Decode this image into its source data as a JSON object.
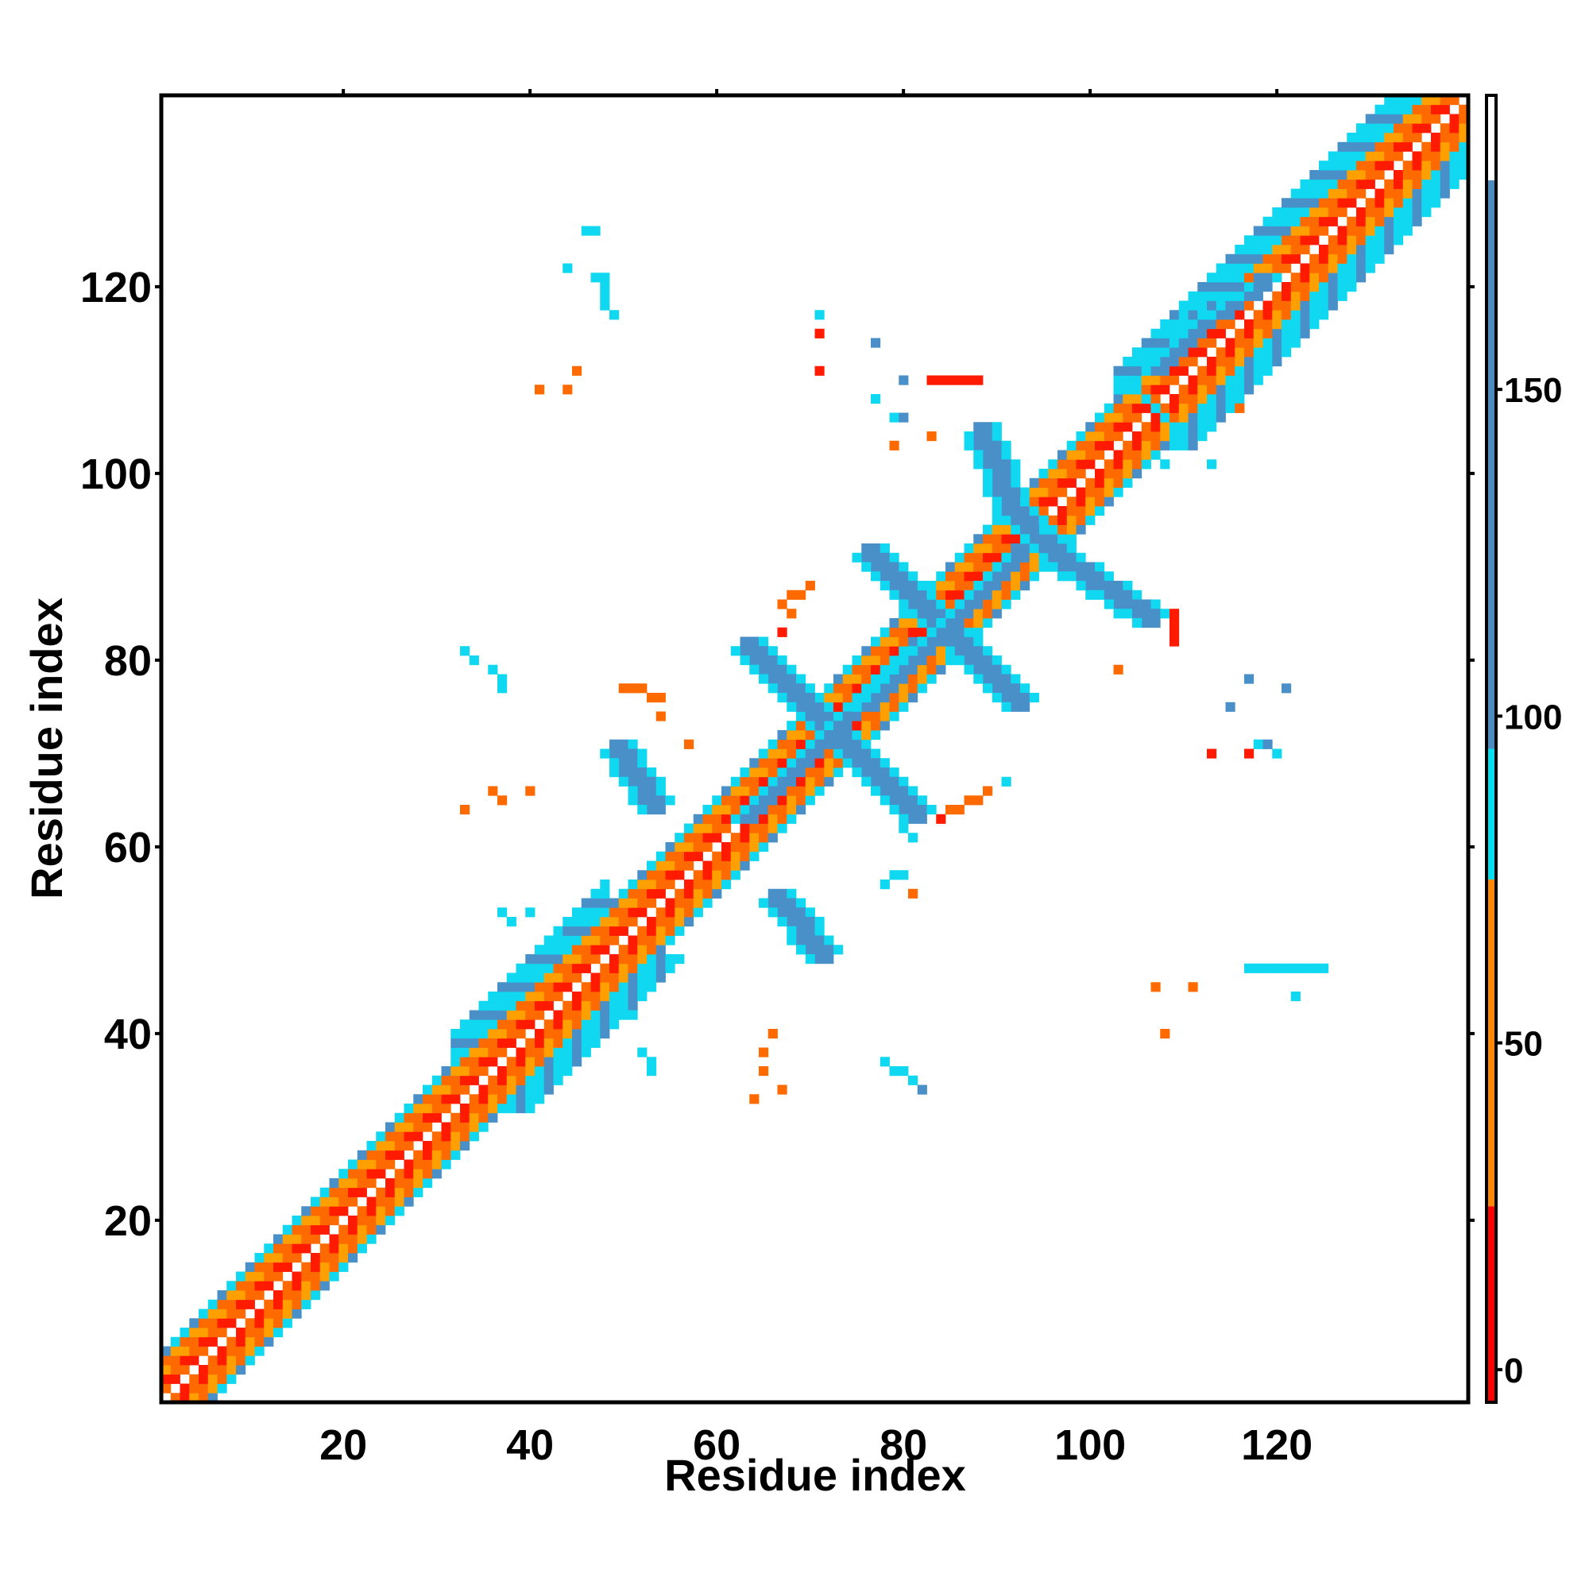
{
  "chart_data": {
    "type": "heatmap",
    "title": "",
    "xlabel": "Residue index",
    "ylabel": "Residue index",
    "xlim": [
      1,
      140
    ],
    "ylim": [
      1,
      140
    ],
    "x_ticks": [
      20,
      40,
      60,
      80,
      100,
      120
    ],
    "y_ticks": [
      20,
      40,
      60,
      80,
      100,
      120
    ],
    "x_tick_labels": [
      "20",
      "40",
      "60",
      "80",
      "100",
      "120"
    ],
    "y_tick_labels": [
      "20",
      "40",
      "60",
      "80",
      "100",
      "120"
    ],
    "grid": false,
    "legend": "none",
    "colorbar": {
      "position": "right",
      "range": [
        -5,
        195
      ],
      "ticks": [
        0,
        50,
        100,
        150
      ],
      "tick_labels": [
        "0",
        "50",
        "100",
        "150"
      ],
      "bands": [
        {
          "from": -5,
          "to": 25,
          "color": "#ff0000"
        },
        {
          "from": 25,
          "to": 75,
          "color": "#ff8800"
        },
        {
          "from": 75,
          "to": 95,
          "color": "#00e0f0"
        },
        {
          "from": 95,
          "to": 182,
          "color": "#4a8cc0"
        },
        {
          "from": 182,
          "to": 195,
          "color": "#ffffff"
        }
      ]
    },
    "colors": {
      "red": "#ff1a00",
      "orange": "#ff6a00",
      "amber": "#ffa000",
      "cyan": "#10d8f0",
      "steel": "#4a90c8"
    },
    "diagonal_band": {
      "start": 1,
      "end": 140,
      "width": 5,
      "widen": [
        [
          32,
          48,
          8
        ],
        [
          103,
          136,
          8
        ]
      ]
    },
    "segments": [
      {
        "color": "steel",
        "width": 2,
        "points": [
          [
            63,
            81
          ],
          [
            72,
            72
          ],
          [
            81,
            63
          ]
        ]
      },
      {
        "color": "steel",
        "width": 2,
        "points": [
          [
            63,
            63
          ],
          [
            72,
            72
          ],
          [
            81,
            81
          ]
        ]
      },
      {
        "color": "steel",
        "width": 2,
        "points": [
          [
            76,
            91
          ],
          [
            84,
            83
          ],
          [
            92,
            75
          ]
        ]
      },
      {
        "color": "steel",
        "width": 2,
        "points": [
          [
            76,
            75
          ],
          [
            84,
            83
          ],
          [
            92,
            91
          ]
        ]
      },
      {
        "color": "steel",
        "width": 2,
        "points": [
          [
            49,
            70
          ],
          [
            53,
            64
          ]
        ]
      },
      {
        "color": "steel",
        "width": 2,
        "points": [
          [
            66,
            54
          ],
          [
            71,
            48
          ]
        ]
      },
      {
        "color": "steel",
        "width": 2,
        "points": [
          [
            88,
            104
          ],
          [
            91,
            96
          ],
          [
            97,
            90
          ],
          [
            106,
            84
          ]
        ]
      },
      {
        "color": "steel",
        "width": 2,
        "points": [
          [
            107,
            111
          ],
          [
            112,
            116
          ],
          [
            118,
            120
          ]
        ]
      },
      {
        "color": "cyan",
        "width": 1,
        "points": [
          [
            104,
            110
          ],
          [
            110,
            104
          ]
        ]
      },
      {
        "color": "cyan",
        "width": 1,
        "points": [
          [
            48,
            121
          ],
          [
            48,
            118
          ]
        ]
      },
      {
        "color": "cyan",
        "width": 1,
        "points": [
          [
            80,
            62
          ],
          [
            81,
            61
          ]
        ]
      },
      {
        "color": "cyan",
        "width": 1,
        "points": [
          [
            117,
            47
          ],
          [
            124,
            47
          ]
        ]
      },
      {
        "color": "cyan",
        "width": 1,
        "points": [
          [
            78,
            37
          ],
          [
            82,
            34
          ]
        ]
      },
      {
        "color": "orange",
        "width": 1,
        "points": [
          [
            84,
            63
          ],
          [
            89,
            66
          ]
        ]
      },
      {
        "color": "orange",
        "width": 1,
        "points": [
          [
            50,
            77
          ],
          [
            54,
            76
          ]
        ]
      },
      {
        "color": "orange",
        "width": 1,
        "points": [
          [
            67,
            86
          ],
          [
            70,
            88
          ]
        ]
      },
      {
        "color": "red",
        "width": 1,
        "points": [
          [
            109,
            85
          ],
          [
            109,
            82
          ]
        ]
      },
      {
        "color": "red",
        "width": 1,
        "points": [
          [
            83,
            110
          ],
          [
            88,
            110
          ]
        ]
      }
    ],
    "cells": [
      {
        "color": "cyan",
        "x": [
          33,
          34,
          36,
          37,
          37,
          46,
          47,
          44,
          47,
          48,
          49,
          50,
          51,
          52,
          53,
          53,
          37,
          38,
          40,
          43,
          71,
          77,
          79,
          91,
          95,
          113,
          108,
          118,
          120,
          125,
          122,
          78,
          79,
          80,
          110,
          109
        ],
        "y": [
          81,
          80,
          79,
          78,
          77,
          126,
          126,
          122,
          121,
          118,
          117,
          44,
          42,
          38,
          37,
          36,
          53,
          52,
          53,
          51,
          117,
          108,
          106,
          67,
          94,
          101,
          101,
          71,
          70,
          47,
          44,
          56,
          57,
          57,
          117,
          116
        ]
      },
      {
        "color": "steel",
        "x": [
          77,
          80,
          80,
          82,
          115,
          119,
          117,
          121
        ],
        "y": [
          114,
          110,
          106,
          34,
          75,
          71,
          78,
          77
        ]
      },
      {
        "color": "orange",
        "x": [
          33,
          36,
          37,
          40,
          41,
          44,
          45,
          54,
          57,
          66,
          65,
          67,
          79,
          83,
          81,
          116,
          107,
          108,
          111,
          103,
          64,
          65,
          68
        ],
        "y": [
          64,
          66,
          65,
          66,
          109,
          109,
          111,
          74,
          71,
          40,
          38,
          34,
          103,
          104,
          55,
          107,
          45,
          40,
          45,
          79,
          33,
          36,
          85
        ]
      },
      {
        "color": "red",
        "x": [
          71,
          71,
          86,
          88,
          113,
          117,
          112,
          84,
          67
        ],
        "y": [
          115,
          111,
          110,
          110,
          70,
          70,
          113,
          63,
          83
        ]
      }
    ]
  }
}
